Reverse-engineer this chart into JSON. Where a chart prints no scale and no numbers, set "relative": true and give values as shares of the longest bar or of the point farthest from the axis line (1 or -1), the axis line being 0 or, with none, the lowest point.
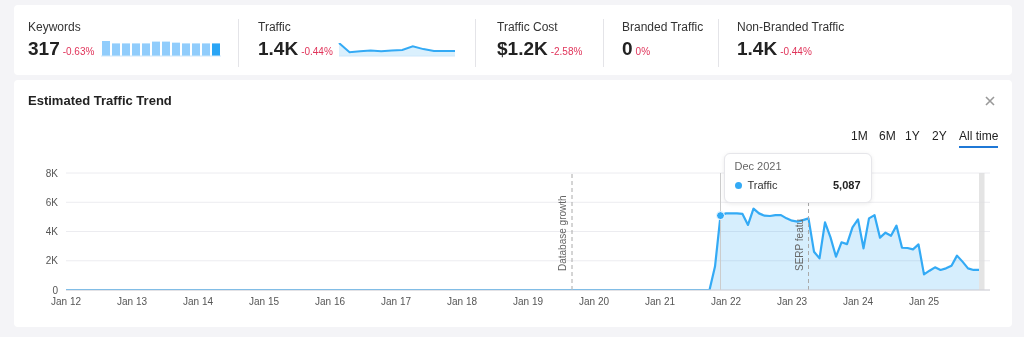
{
  "chart_data": [
    {
      "type": "other",
      "annotations": [
        "Keywords",
        "317",
        "-0.63%",
        "Traffic",
        "1.4K",
        "-0.44%",
        "Traffic Cost",
        "$1.2K",
        "-2.58%",
        "Branded Traffic",
        "0",
        "0%",
        "Non-Branded Traffic",
        "1.4K",
        "-0.44%"
      ]
    },
    {
      "type": "bar",
      "relative": true,
      "categories": [
        null,
        null,
        null,
        null,
        null,
        null,
        null,
        null,
        null,
        null,
        null,
        null
      ],
      "values": [
        1,
        0.84,
        0.84,
        0.84,
        0.84,
        0.96,
        0.96,
        0.89,
        0.84,
        0.84,
        0.84,
        0.84
      ],
      "colors": [
        "#91cdfc",
        "#91cdfc",
        "#91cdfc",
        "#91cdfc",
        "#91cdfc",
        "#91cdfc",
        "#91cdfc",
        "#91cdfc",
        "#91cdfc",
        "#91cdfc",
        "#91cdfc",
        "#2aa5f5"
      ]
    },
    {
      "type": "area",
      "relative": true,
      "categories": [
        null,
        null,
        null,
        null,
        null,
        null,
        null,
        null,
        null,
        null,
        null,
        null
      ],
      "color": "#33aaf5",
      "values": [
        1,
        0.29,
        0.37,
        0.42,
        0.37,
        0.42,
        0.47,
        0.74,
        0.53,
        0.39,
        0.39,
        0.39
      ]
    },
    {
      "type": "area",
      "title": "Estimated Traffic Trend",
      "annotations": [
        "1M",
        "6M",
        "1Y",
        "2Y",
        "All time",
        "Dec 2021",
        "5,087"
      ],
      "x": [
        "2012-01",
        "2021-10",
        "2021-11",
        "2021-12",
        "2022-01",
        "2022-02",
        "2022-03",
        "2022-04",
        "2022-05",
        "2022-06",
        "2022-07",
        "2022-08",
        "2022-09",
        "2022-10",
        "2022-11",
        "2022-12",
        "2023-01",
        "2023-02",
        "2023-03",
        "2023-04",
        "2023-05",
        "2023-06",
        "2023-07",
        "2023-08",
        "2023-09",
        "2023-10",
        "2023-11",
        "2023-12",
        "2024-01",
        "2024-02",
        "2024-03",
        "2024-04",
        "2024-05",
        "2024-06",
        "2024-07",
        "2024-08",
        "2024-09",
        "2024-10",
        "2024-11",
        "2024-12",
        "2025-01",
        "2025-02",
        "2025-03",
        "2025-04",
        "2025-05",
        "2025-06",
        "2025-07",
        "2025-08",
        "2025-09",
        "2025-10",
        "2025-11"
      ],
      "series": [
        {
          "name": "Traffic",
          "color": "#33aaf5",
          "values": [
            0,
            0,
            1600,
            5087,
            5240,
            5240,
            5240,
            5200,
            4450,
            5560,
            5240,
            5080,
            5060,
            5120,
            5120,
            4900,
            4740,
            4670,
            4780,
            4900,
            2620,
            2160,
            4620,
            3600,
            2280,
            3260,
            3140,
            4280,
            4830,
            2850,
            4900,
            5120,
            3580,
            3920,
            3710,
            4400,
            2890,
            2870,
            2780,
            3120,
            1070,
            1320,
            1550,
            1370,
            1480,
            1660,
            2350,
            1940,
            1480,
            1370,
            1370
          ]
        }
      ],
      "xlim": [
        "2012-01",
        "2026-01"
      ],
      "xticks": [
        {
          "value": "2012-01",
          "label": "Jan 12"
        },
        {
          "value": "2013-01",
          "label": "Jan 13"
        },
        {
          "value": "2014-01",
          "label": "Jan 14"
        },
        {
          "value": "2015-01",
          "label": "Jan 15"
        },
        {
          "value": "2016-01",
          "label": "Jan 16"
        },
        {
          "value": "2017-01",
          "label": "Jan 17"
        },
        {
          "value": "2018-01",
          "label": "Jan 18"
        },
        {
          "value": "2019-01",
          "label": "Jan 19"
        },
        {
          "value": "2020-01",
          "label": "Jan 20"
        },
        {
          "value": "2021-01",
          "label": "Jan 21"
        },
        {
          "value": "2022-01",
          "label": "Jan 22"
        },
        {
          "value": "2023-01",
          "label": "Jan 23"
        },
        {
          "value": "2024-01",
          "label": "Jan 24"
        },
        {
          "value": "2025-01",
          "label": "Jan 25"
        }
      ],
      "ylim": [
        0,
        8000
      ],
      "yticks": [
        0,
        {
          "value": 2000,
          "label": "2K"
        },
        {
          "value": 4000,
          "label": "4K"
        },
        {
          "value": 6000,
          "label": "6K"
        },
        {
          "value": 8000,
          "label": "8K"
        }
      ],
      "grid": "y",
      "legend": "top",
      "marker": "none",
      "line_style": "solid",
      "ref_lines": [
        {
          "axis": "x",
          "value": "2019-09",
          "label": "Database growth",
          "color": "#aaaaaa",
          "line_style": "dashed"
        },
        {
          "axis": "x",
          "value": "2023-04",
          "label": "SERP featu",
          "color": "#aaaaaa",
          "line_style": "dashed"
        },
        {
          "axis": "x",
          "value": "2021-12",
          "color": "#cccccc",
          "line_style": "solid"
        }
      ],
      "bands": [
        {
          "axis": "x",
          "from": "2025-11",
          "to": "2025-12",
          "color": "#dddddd"
        }
      ]
    }
  ]
}
